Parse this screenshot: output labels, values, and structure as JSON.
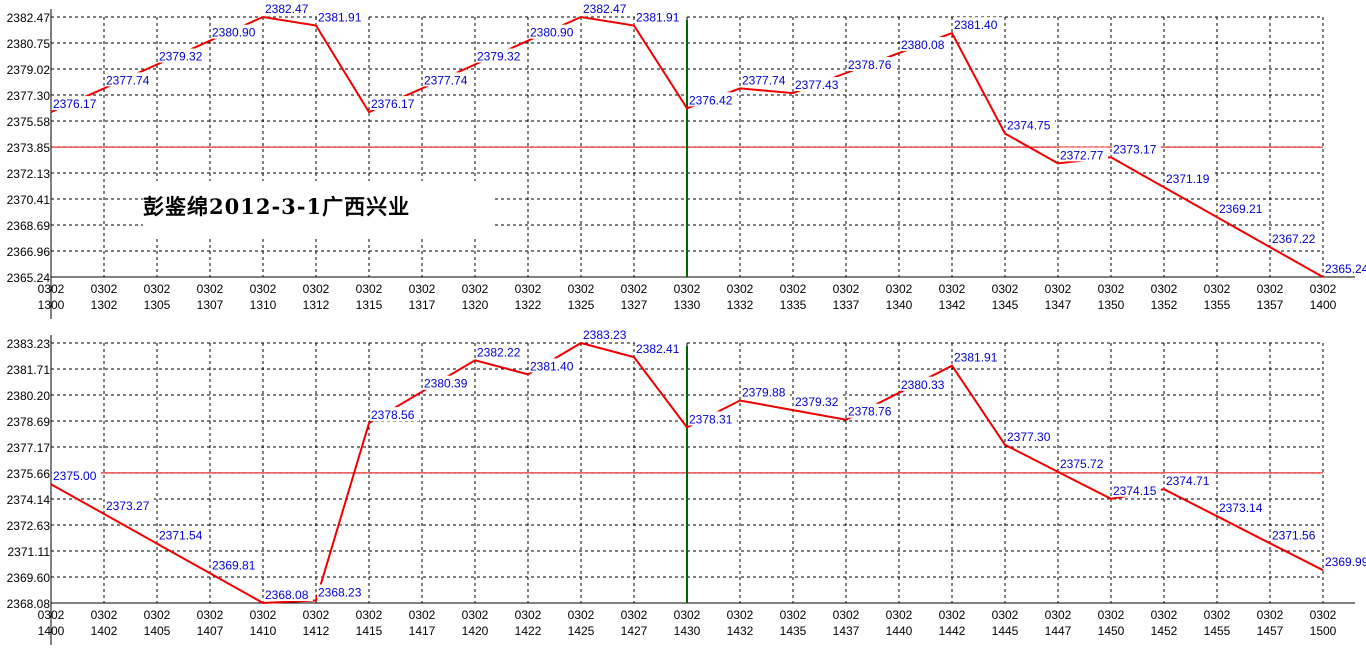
{
  "chart_data": [
    {
      "type": "line",
      "title": "",
      "watermark": "彭鉴绵2012-3-1广西兴业",
      "xlabel": "",
      "ylabel": "",
      "x_date": "0302",
      "x": [
        "1300",
        "1302",
        "1305",
        "1307",
        "1310",
        "1312",
        "1315",
        "1317",
        "1320",
        "1322",
        "1325",
        "1327",
        "1330",
        "1332",
        "1335",
        "1337",
        "1340",
        "1342",
        "1345",
        "1347",
        "1350",
        "1352",
        "1355",
        "1357",
        "1400"
      ],
      "yticks": [
        "2382.47",
        "2380.75",
        "2379.02",
        "2377.30",
        "2375.58",
        "2373.85",
        "2372.13",
        "2370.41",
        "2368.69",
        "2366.96",
        "2365.24"
      ],
      "ylim": [
        2365.24,
        2382.47
      ],
      "values": [
        2376.17,
        2377.74,
        2379.32,
        2380.9,
        2382.47,
        2381.91,
        2376.17,
        2377.74,
        2379.32,
        2380.9,
        2382.47,
        2381.91,
        2376.42,
        2377.74,
        2377.43,
        2378.76,
        2380.08,
        2381.4,
        2374.75,
        2372.77,
        2373.17,
        2371.19,
        2369.21,
        2367.22,
        2365.24
      ],
      "labels": [
        "2376.17",
        "2377.74",
        "2379.32",
        "2380.90",
        "2382.47",
        "2381.91",
        "2376.17",
        "2377.74",
        "2379.32",
        "2380.90",
        "2382.47",
        "2381.91",
        "2376.42",
        "2377.74",
        "2377.43",
        "2378.76",
        "2380.08",
        "2381.40",
        "2374.75",
        "2372.77",
        "2373.17",
        "2371.19",
        "2369.21",
        "2367.22",
        "2365.24"
      ],
      "reference_line": 2373.85,
      "vertical_marker_x": "1330",
      "grid": true,
      "colors": {
        "line": "#ee0000",
        "label": "#0000cc",
        "ref": "#ee0000",
        "marker": "#006600"
      }
    },
    {
      "type": "line",
      "title": "",
      "xlabel": "",
      "ylabel": "",
      "x_date": "0302",
      "x": [
        "1400",
        "1402",
        "1405",
        "1407",
        "1410",
        "1412",
        "1415",
        "1417",
        "1420",
        "1422",
        "1425",
        "1427",
        "1430",
        "1432",
        "1435",
        "1437",
        "1440",
        "1442",
        "1445",
        "1447",
        "1450",
        "1452",
        "1455",
        "1457",
        "1500"
      ],
      "yticks": [
        "2383.23",
        "2381.71",
        "2380.20",
        "2378.69",
        "2377.17",
        "2375.66",
        "2374.14",
        "2372.63",
        "2371.11",
        "2369.60",
        "2368.08"
      ],
      "ylim": [
        2368.08,
        2383.23
      ],
      "values": [
        2375.0,
        2373.27,
        2371.54,
        2369.81,
        2368.08,
        2368.23,
        2378.56,
        2380.39,
        2382.22,
        2381.4,
        2383.23,
        2382.41,
        2378.31,
        2379.88,
        2379.32,
        2378.76,
        2380.33,
        2381.91,
        2377.3,
        2375.72,
        2374.15,
        2374.71,
        2373.14,
        2371.56,
        2369.99
      ],
      "labels": [
        "2375.00",
        "2373.27",
        "2371.54",
        "2369.81",
        "2368.08",
        "2368.23",
        "2378.56",
        "2380.39",
        "2382.22",
        "2381.40",
        "2383.23",
        "2382.41",
        "2378.31",
        "2379.88",
        "2379.32",
        "2378.76",
        "2380.33",
        "2381.91",
        "2377.30",
        "2375.72",
        "2374.15",
        "2374.71",
        "2373.14",
        "2371.56",
        "2369.99"
      ],
      "reference_line": 2375.66,
      "vertical_marker_x": "1430",
      "grid": true,
      "colors": {
        "line": "#ee0000",
        "label": "#0000cc",
        "ref": "#ee0000",
        "marker": "#006600"
      }
    }
  ]
}
